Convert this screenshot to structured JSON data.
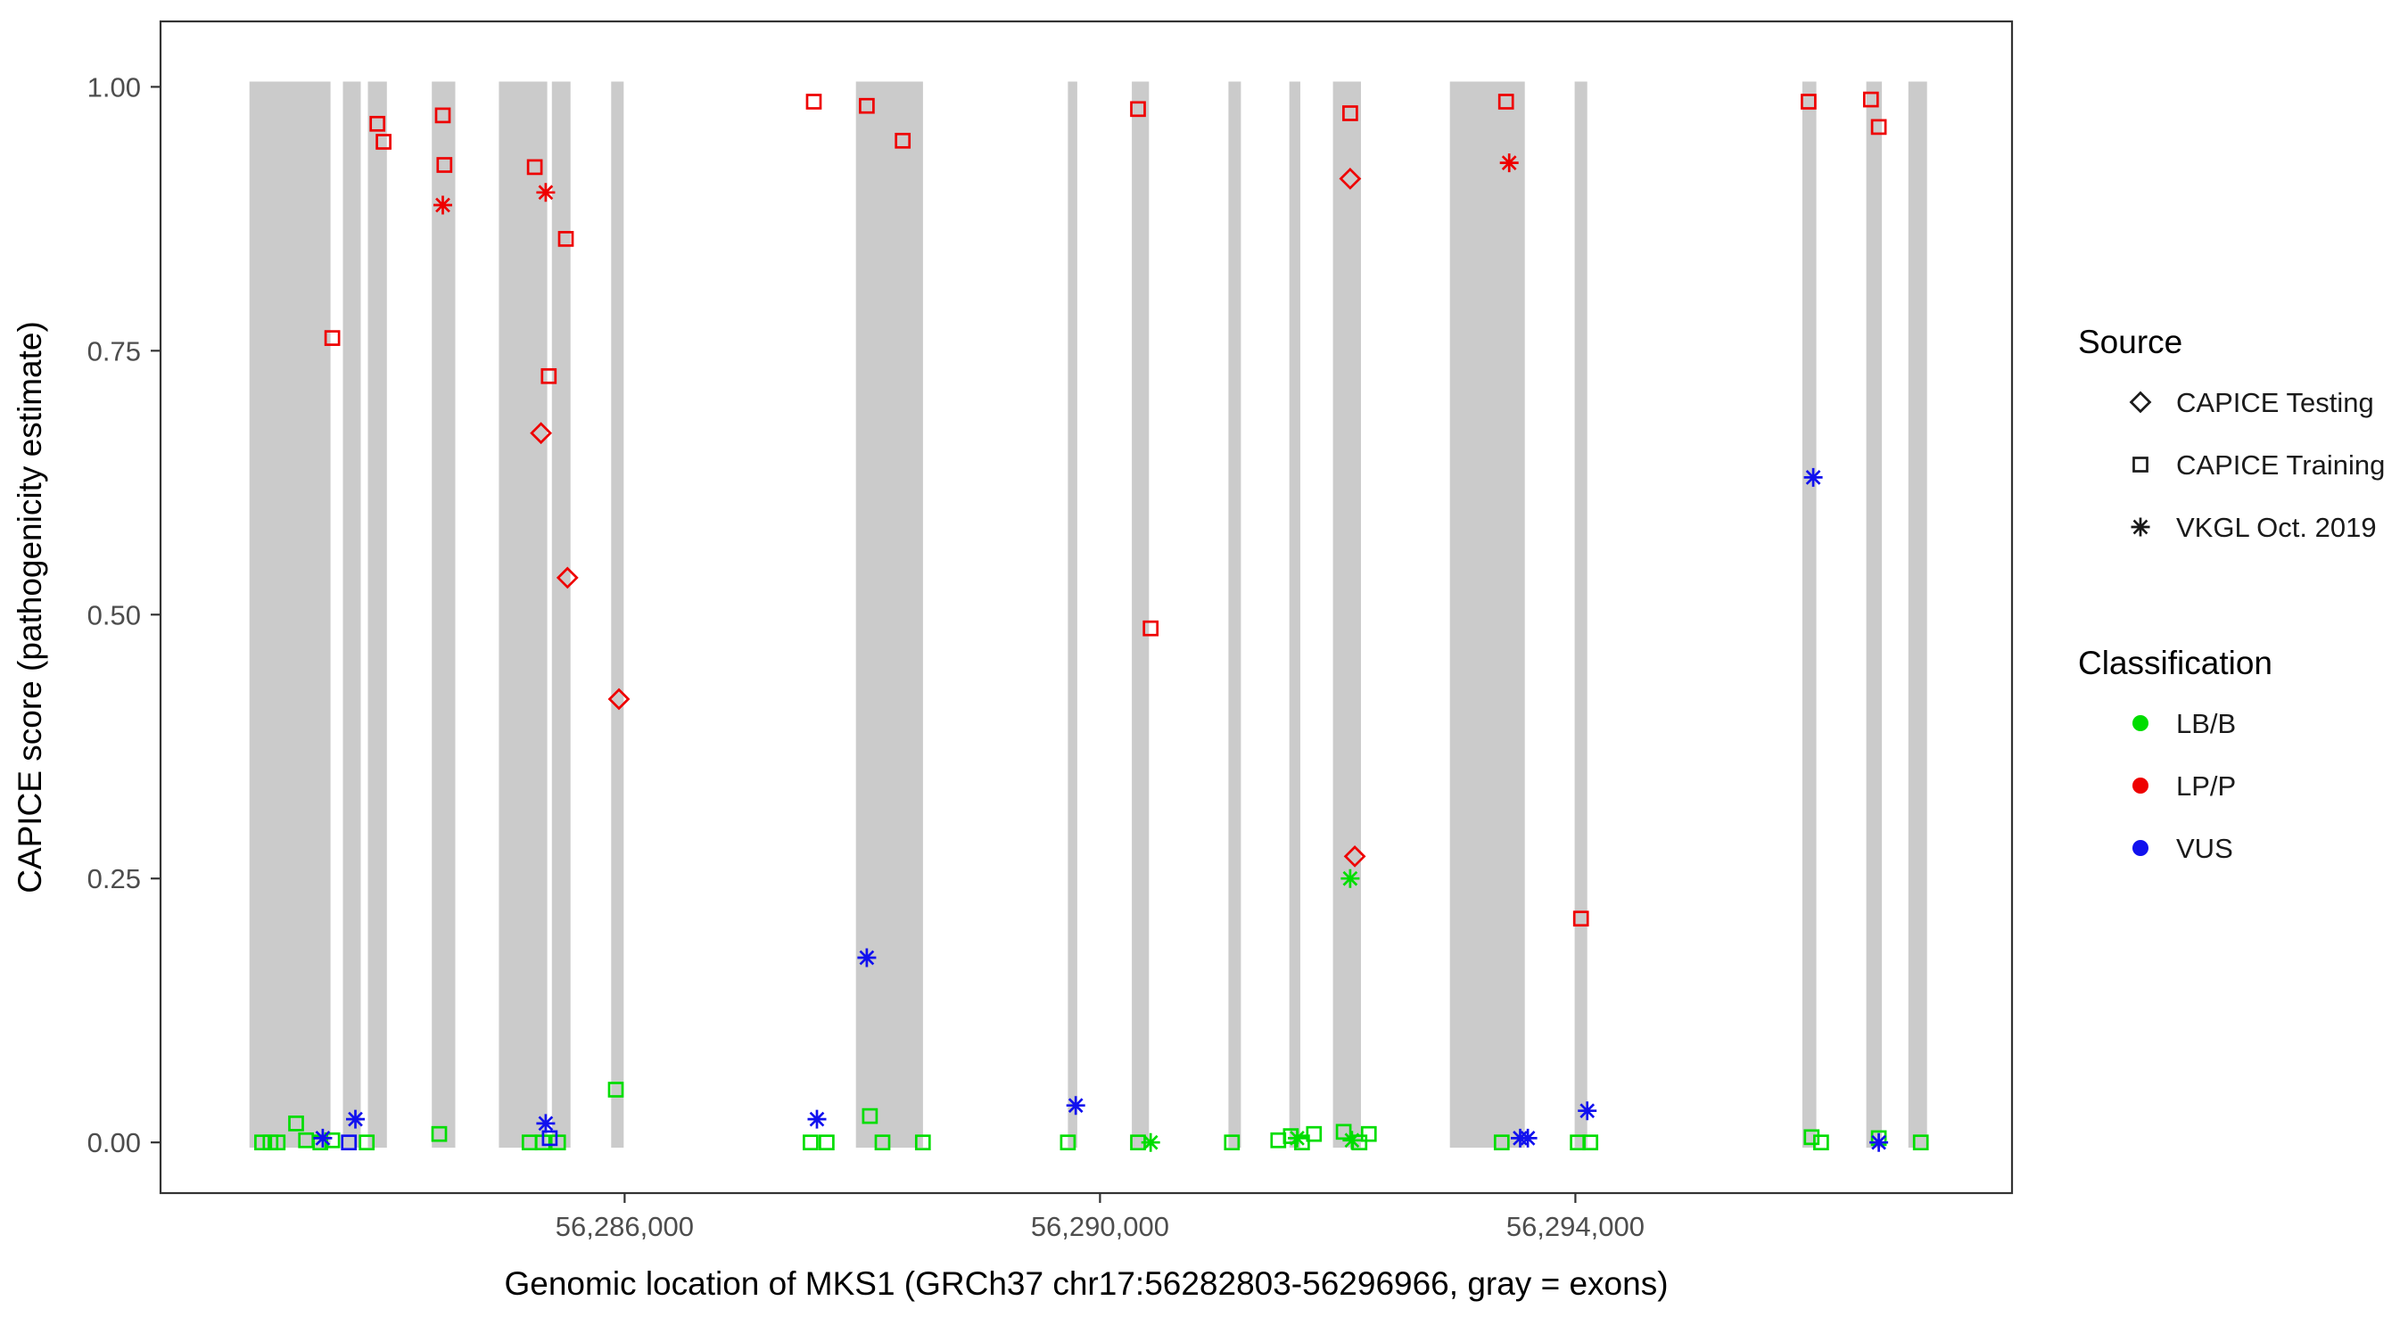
{
  "colors": {
    "background": "#FFFFFF",
    "exon_gray": "#CBCBCB",
    "panel_border": "#333333",
    "axis_text": "#4D4D4D",
    "title_text": "#000000",
    "legend_text": "#1A1A1A",
    "lb_b": "#00DD00",
    "lp_p": "#EE0000",
    "vus": "#1111EE"
  },
  "chart_data": {
    "type": "scatter",
    "title": "",
    "xlabel": "Genomic location of MKS1 (GRCh37 chr17:56282803-56296966, gray = exons)",
    "ylabel": "CAPICE score (pathogenicity estimate)",
    "x_domain": [
      56282095,
      56297674
    ],
    "y_domain": [
      -0.048,
      1.062
    ],
    "grid": false,
    "x_ticks": [
      {
        "pos": 56286000,
        "label": "56,286,000"
      },
      {
        "pos": 56290000,
        "label": "56,290,000"
      },
      {
        "pos": 56294000,
        "label": "56,294,000"
      }
    ],
    "y_ticks": [
      {
        "value": 0.0,
        "label": "0.00"
      },
      {
        "value": 0.25,
        "label": "0.25"
      },
      {
        "value": 0.5,
        "label": "0.50"
      },
      {
        "value": 0.75,
        "label": "0.75"
      },
      {
        "value": 1.0,
        "label": "1.00"
      }
    ],
    "exons": [
      [
        56282843,
        56283525
      ],
      [
        56283630,
        56283780
      ],
      [
        56283840,
        56284000
      ],
      [
        56284378,
        56284575
      ],
      [
        56284942,
        56285349
      ],
      [
        56285388,
        56285545
      ],
      [
        56285887,
        56285992
      ],
      [
        56287946,
        56288510
      ],
      [
        56289730,
        56289809
      ],
      [
        56290268,
        56290412
      ],
      [
        56291081,
        56291186
      ],
      [
        56291593,
        56291685
      ],
      [
        56291960,
        56292196
      ],
      [
        56292944,
        56293574
      ],
      [
        56293994,
        56294100
      ],
      [
        56295910,
        56296028
      ],
      [
        56296448,
        56296579
      ],
      [
        56296802,
        56296959
      ]
    ],
    "series": [
      {
        "name": "LP/P - CAPICE Training",
        "source": "CAPICE Training",
        "classification": "LP/P",
        "marker": "square-open",
        "color": "#EE0000",
        "points": [
          [
            56283540,
            0.762
          ],
          [
            56283920,
            0.965
          ],
          [
            56283972,
            0.948
          ],
          [
            56284470,
            0.973
          ],
          [
            56284484,
            0.926
          ],
          [
            56285244,
            0.924
          ],
          [
            56285362,
            0.726
          ],
          [
            56285506,
            0.856
          ],
          [
            56287592,
            0.986
          ],
          [
            56288038,
            0.982
          ],
          [
            56288340,
            0.949
          ],
          [
            56290320,
            0.979
          ],
          [
            56290426,
            0.487
          ],
          [
            56292105,
            0.975
          ],
          [
            56293417,
            0.986
          ],
          [
            56294047,
            0.212
          ],
          [
            56295962,
            0.986
          ],
          [
            56296487,
            0.988
          ],
          [
            56296553,
            0.962
          ]
        ]
      },
      {
        "name": "LP/P - CAPICE Testing",
        "source": "CAPICE Testing",
        "classification": "LP/P",
        "marker": "diamond-open",
        "color": "#EE0000",
        "points": [
          [
            56285296,
            0.672
          ],
          [
            56285519,
            0.535
          ],
          [
            56285952,
            0.42
          ],
          [
            56292105,
            0.913
          ],
          [
            56292144,
            0.271
          ]
        ]
      },
      {
        "name": "LP/P - VKGL Oct. 2019",
        "source": "VKGL Oct. 2019",
        "classification": "LP/P",
        "marker": "asterisk",
        "color": "#EE0000",
        "points": [
          [
            56284470,
            0.888
          ],
          [
            56285336,
            0.9
          ],
          [
            56293443,
            0.928
          ]
        ]
      },
      {
        "name": "LB/B - CAPICE Training",
        "source": "CAPICE Training",
        "classification": "LB/B",
        "marker": "square-open",
        "color": "#00DD00",
        "points": [
          [
            56282950,
            0.0
          ],
          [
            56283020,
            0.0
          ],
          [
            56283080,
            0.0
          ],
          [
            56283236,
            0.018
          ],
          [
            56283320,
            0.002
          ],
          [
            56283440,
            0.0
          ],
          [
            56283540,
            0.002
          ],
          [
            56283830,
            0.0
          ],
          [
            56284440,
            0.008
          ],
          [
            56285200,
            0.0
          ],
          [
            56285310,
            0.0
          ],
          [
            56285440,
            0.0
          ],
          [
            56285926,
            0.05
          ],
          [
            56287565,
            0.0
          ],
          [
            56287700,
            0.0
          ],
          [
            56288064,
            0.025
          ],
          [
            56288170,
            0.0
          ],
          [
            56288510,
            0.0
          ],
          [
            56289730,
            0.0
          ],
          [
            56290320,
            0.0
          ],
          [
            56291110,
            0.0
          ],
          [
            56291500,
            0.002
          ],
          [
            56291606,
            0.006
          ],
          [
            56291700,
            0.0
          ],
          [
            56291800,
            0.008
          ],
          [
            56292050,
            0.01
          ],
          [
            56292183,
            0.0
          ],
          [
            56292262,
            0.008
          ],
          [
            56293380,
            0.0
          ],
          [
            56294020,
            0.0
          ],
          [
            56294126,
            0.0
          ],
          [
            56295988,
            0.005
          ],
          [
            56296067,
            0.0
          ],
          [
            56296553,
            0.004
          ],
          [
            56296906,
            0.0
          ]
        ]
      },
      {
        "name": "LB/B - VKGL Oct. 2019",
        "source": "VKGL Oct. 2019",
        "classification": "LB/B",
        "marker": "asterisk",
        "color": "#00DD00",
        "points": [
          [
            56290426,
            0.0
          ],
          [
            56291659,
            0.004
          ],
          [
            56292105,
            0.25
          ],
          [
            56292120,
            0.002
          ]
        ]
      },
      {
        "name": "VUS - CAPICE Training",
        "source": "CAPICE Training",
        "classification": "VUS",
        "marker": "square-open",
        "color": "#1111EE",
        "points": [
          [
            56283680,
            0.0
          ],
          [
            56285370,
            0.004
          ]
        ]
      },
      {
        "name": "VUS - VKGL Oct. 2019",
        "source": "VKGL Oct. 2019",
        "classification": "VUS",
        "marker": "asterisk",
        "color": "#1111EE",
        "points": [
          [
            56283460,
            0.004
          ],
          [
            56283735,
            0.022
          ],
          [
            56285336,
            0.018
          ],
          [
            56287618,
            0.022
          ],
          [
            56288038,
            0.175
          ],
          [
            56289796,
            0.035
          ],
          [
            56293535,
            0.004
          ],
          [
            56293600,
            0.004
          ],
          [
            56294100,
            0.03
          ],
          [
            56296001,
            0.63
          ],
          [
            56296553,
            0.0
          ]
        ]
      }
    ]
  },
  "legend": {
    "source": {
      "title": "Source",
      "items": [
        {
          "label": "CAPICE Testing",
          "marker": "diamond-open"
        },
        {
          "label": "CAPICE Training",
          "marker": "square-open"
        },
        {
          "label": "VKGL Oct. 2019",
          "marker": "asterisk"
        }
      ]
    },
    "classification": {
      "title": "Classification",
      "items": [
        {
          "label": "LB/B",
          "color": "#00DD00"
        },
        {
          "label": "LP/P",
          "color": "#EE0000"
        },
        {
          "label": "VUS",
          "color": "#1111EE"
        }
      ]
    }
  }
}
